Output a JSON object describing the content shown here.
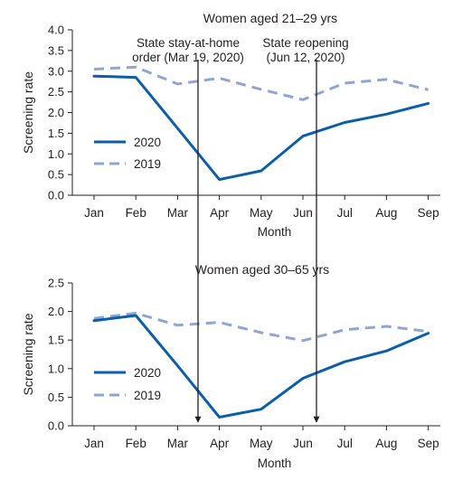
{
  "colors": {
    "series_2020": "#0b5ea8",
    "series_2019": "#8fa6d3",
    "axis": "#231f20",
    "annotation_line": "#231f20"
  },
  "annotations": {
    "stay_home_line1": "State stay-at-home",
    "stay_home_line2": "order (Mar 19, 2020)",
    "reopening_line1": "State reopening",
    "reopening_line2": "(Jun 12, 2020)"
  },
  "chart_data": [
    {
      "type": "line",
      "title": "Women aged 21–29 yrs",
      "xlabel": "Month",
      "ylabel": "Screening rate",
      "categories": [
        "Jan",
        "Feb",
        "Mar",
        "Apr",
        "May",
        "Jun",
        "Jul",
        "Aug",
        "Sep"
      ],
      "ylim": [
        0,
        4
      ],
      "yticks": [
        "0.0",
        "0.5",
        "1.0",
        "1.5",
        "2.0",
        "2.5",
        "3.0",
        "3.5",
        "4.0"
      ],
      "legend_position": "left",
      "series": [
        {
          "name": "2020",
          "style": "solid",
          "values": [
            2.88,
            2.85,
            1.62,
            0.38,
            0.59,
            1.43,
            1.76,
            1.96,
            2.22
          ]
        },
        {
          "name": "2019",
          "style": "dashed",
          "values": [
            3.05,
            3.1,
            2.69,
            2.83,
            2.56,
            2.31,
            2.71,
            2.8,
            2.55
          ]
        }
      ],
      "vlines": [
        {
          "x": "Mar 19, 2020",
          "month_index": 2.6
        },
        {
          "x": "Jun 12, 2020",
          "month_index": 5.38
        }
      ]
    },
    {
      "type": "line",
      "title": "Women aged 30–65 yrs",
      "xlabel": "Month",
      "ylabel": "Screening rate",
      "categories": [
        "Jan",
        "Feb",
        "Mar",
        "Apr",
        "May",
        "Jun",
        "Jul",
        "Aug",
        "Sep"
      ],
      "ylim": [
        0,
        2.5
      ],
      "yticks": [
        "0.0",
        "0.5",
        "1.0",
        "1.5",
        "2.0",
        "2.5"
      ],
      "legend_position": "left",
      "series": [
        {
          "name": "2020",
          "style": "solid",
          "values": [
            1.84,
            1.93,
            1.05,
            0.15,
            0.29,
            0.83,
            1.12,
            1.31,
            1.62
          ]
        },
        {
          "name": "2019",
          "style": "dashed",
          "values": [
            1.88,
            1.97,
            1.76,
            1.81,
            1.63,
            1.49,
            1.68,
            1.74,
            1.65
          ]
        }
      ],
      "vlines": [
        {
          "x": "Mar 19, 2020",
          "month_index": 2.6
        },
        {
          "x": "Jun 12, 2020",
          "month_index": 5.38
        }
      ]
    }
  ]
}
